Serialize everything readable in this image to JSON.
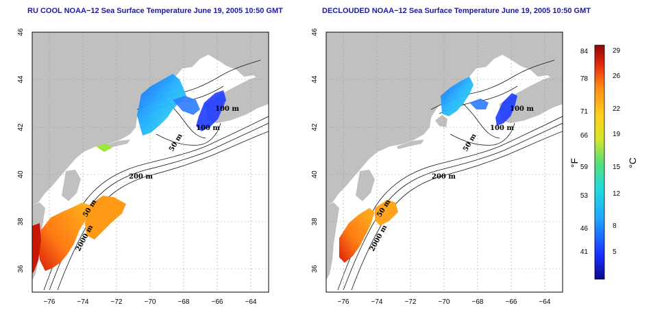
{
  "maps": [
    {
      "title": "RU COOL NOAA−12 Sea Surface Temperature June 19, 2005 10:50 GMT",
      "contour_labels": [
        "100 m",
        "200 m",
        "50 m",
        "50 m",
        "2000 m",
        "100 m",
        "200 m"
      ]
    },
    {
      "title": "DECLOUDED NOAA−12 Sea Surface Temperature June 19, 2005 10:50 GMT",
      "contour_labels": [
        "100 m",
        "200 m",
        "50 m",
        "50 m",
        "2000 m",
        "100 m",
        "200 m"
      ]
    }
  ],
  "axes": {
    "x_ticks": [
      "−76",
      "−74",
      "−72",
      "−70",
      "−68",
      "−66",
      "−64"
    ],
    "y_ticks": [
      "46",
      "44",
      "42",
      "40",
      "38",
      "36"
    ]
  },
  "colorbar": {
    "fahrenheit_ticks": [
      "84",
      "78",
      "71",
      "66",
      "59",
      "53",
      "46",
      "41"
    ],
    "celsius_ticks": [
      "29",
      "26",
      "22",
      "19",
      "15",
      "12",
      "8",
      "5"
    ],
    "fahrenheit_unit": "°F",
    "celsius_unit": "°C",
    "colors": [
      "#0a0a8c",
      "#1a4cff",
      "#21c8ff",
      "#4bdc8a",
      "#c8e628",
      "#ffd21e",
      "#ff8a14",
      "#e0280a",
      "#9c0a0a"
    ]
  },
  "colors": {
    "land": "#c0c0c0",
    "ocean": "#ffffff",
    "title": "#1a1a9c"
  }
}
